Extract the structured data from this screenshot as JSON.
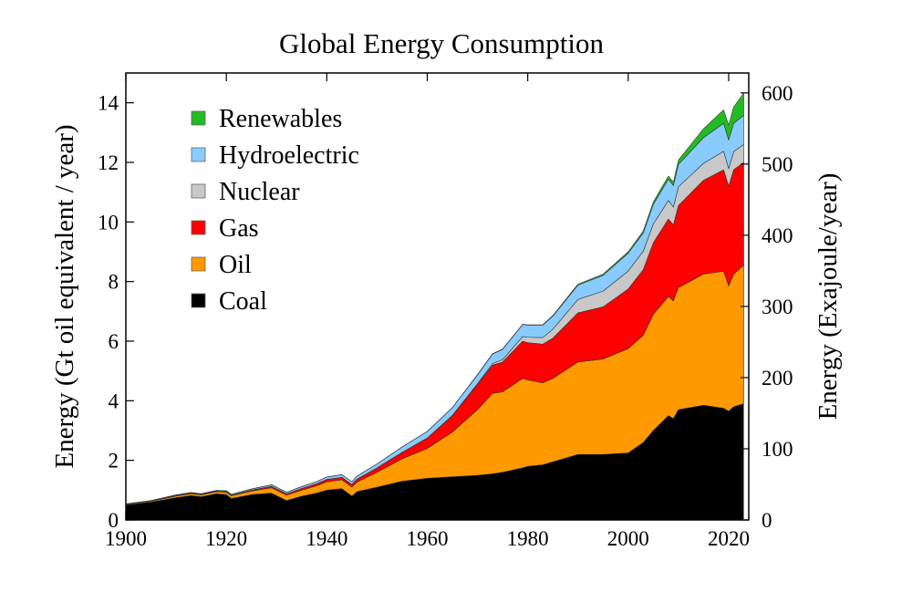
{
  "chart_data": {
    "type": "area",
    "stacked": true,
    "title": "Global Energy Consumption",
    "xlabel": "",
    "ylabel": "Energy (Gt oil equivalent / year)",
    "y2label": "Energy (Exajoule/year)",
    "xlim": [
      1900,
      2024
    ],
    "ylim": [
      0,
      15
    ],
    "y2lim": [
      0,
      628
    ],
    "xticks": [
      1900,
      1920,
      1940,
      1960,
      1980,
      2000,
      2020
    ],
    "yticks": [
      0,
      2,
      4,
      6,
      8,
      10,
      12,
      14
    ],
    "y2ticks": [
      0,
      100,
      200,
      300,
      400,
      500,
      600
    ],
    "legend_position": "top-left",
    "x": [
      1900,
      1905,
      1910,
      1913,
      1915,
      1918,
      1920,
      1921,
      1925,
      1929,
      1932,
      1935,
      1938,
      1940,
      1943,
      1945,
      1946,
      1950,
      1955,
      1960,
      1965,
      1970,
      1973,
      1975,
      1979,
      1980,
      1983,
      1985,
      1990,
      1995,
      2000,
      2003,
      2005,
      2008,
      2009,
      2010,
      2015,
      2019,
      2020,
      2021,
      2023
    ],
    "series": [
      {
        "name": "Coal",
        "color": "#000000",
        "values": [
          0.5,
          0.6,
          0.75,
          0.82,
          0.78,
          0.88,
          0.85,
          0.72,
          0.85,
          0.9,
          0.65,
          0.8,
          0.9,
          1.0,
          1.05,
          0.8,
          0.95,
          1.1,
          1.3,
          1.4,
          1.45,
          1.5,
          1.55,
          1.6,
          1.75,
          1.8,
          1.85,
          1.95,
          2.2,
          2.2,
          2.25,
          2.6,
          3.0,
          3.5,
          3.4,
          3.7,
          3.85,
          3.75,
          3.65,
          3.8,
          3.9
        ]
      },
      {
        "name": "Oil",
        "color": "#ff9900",
        "values": [
          0.02,
          0.03,
          0.05,
          0.06,
          0.06,
          0.07,
          0.08,
          0.09,
          0.12,
          0.18,
          0.18,
          0.2,
          0.25,
          0.28,
          0.3,
          0.3,
          0.32,
          0.5,
          0.75,
          1.0,
          1.5,
          2.2,
          2.7,
          2.7,
          3.0,
          2.9,
          2.75,
          2.8,
          3.1,
          3.2,
          3.5,
          3.6,
          3.9,
          4.0,
          3.95,
          4.1,
          4.4,
          4.6,
          4.2,
          4.45,
          4.65
        ]
      },
      {
        "name": "Gas",
        "color": "#ff0000",
        "values": [
          0.01,
          0.01,
          0.02,
          0.02,
          0.02,
          0.02,
          0.02,
          0.02,
          0.03,
          0.05,
          0.05,
          0.06,
          0.07,
          0.08,
          0.08,
          0.09,
          0.1,
          0.15,
          0.22,
          0.35,
          0.55,
          0.85,
          0.95,
          1.0,
          1.25,
          1.25,
          1.3,
          1.35,
          1.65,
          1.75,
          2.0,
          2.2,
          2.4,
          2.6,
          2.55,
          2.75,
          3.15,
          3.4,
          3.35,
          3.5,
          3.45
        ]
      },
      {
        "name": "Nuclear",
        "color": "#c8c8c8",
        "values": [
          0,
          0,
          0,
          0,
          0,
          0,
          0,
          0,
          0,
          0,
          0,
          0,
          0,
          0,
          0,
          0,
          0,
          0,
          0,
          0,
          0.01,
          0.02,
          0.05,
          0.08,
          0.16,
          0.18,
          0.22,
          0.3,
          0.45,
          0.53,
          0.6,
          0.62,
          0.63,
          0.62,
          0.6,
          0.63,
          0.57,
          0.62,
          0.59,
          0.61,
          0.6
        ]
      },
      {
        "name": "Hydroelectric",
        "color": "#88ccff",
        "values": [
          0.01,
          0.01,
          0.02,
          0.02,
          0.02,
          0.02,
          0.03,
          0.03,
          0.04,
          0.05,
          0.05,
          0.06,
          0.07,
          0.08,
          0.09,
          0.09,
          0.1,
          0.13,
          0.18,
          0.22,
          0.26,
          0.3,
          0.32,
          0.35,
          0.4,
          0.41,
          0.42,
          0.44,
          0.48,
          0.53,
          0.6,
          0.61,
          0.66,
          0.72,
          0.72,
          0.75,
          0.86,
          0.94,
          0.96,
          0.95,
          0.98
        ]
      },
      {
        "name": "Renewables",
        "color": "#22bb22",
        "values": [
          0,
          0,
          0,
          0,
          0,
          0,
          0,
          0,
          0,
          0,
          0,
          0,
          0,
          0,
          0,
          0,
          0,
          0,
          0,
          0,
          0,
          0.01,
          0.01,
          0.01,
          0.01,
          0.01,
          0.01,
          0.02,
          0.03,
          0.04,
          0.05,
          0.07,
          0.08,
          0.1,
          0.12,
          0.15,
          0.3,
          0.45,
          0.5,
          0.55,
          0.75
        ]
      }
    ]
  }
}
